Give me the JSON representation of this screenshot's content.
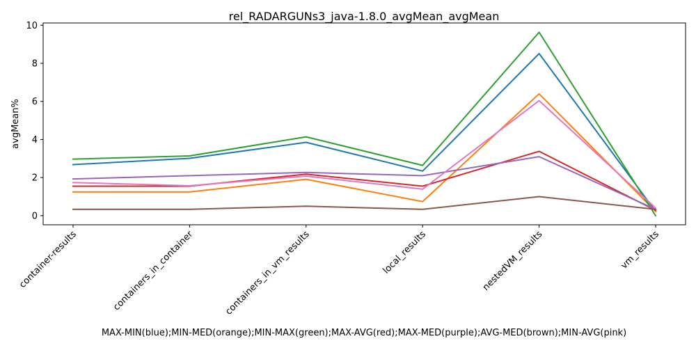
{
  "chart_data": {
    "type": "line",
    "title": "rel_RADARGUNs3_java-1.8.0_avgMean_avgMean",
    "xlabel": "MAX-MIN(blue);MIN-MED(orange);MIN-MAX(green);MAX-AVG(red);MAX-MED(purple);AVG-MED(brown);MIN-AVG(pink)",
    "ylabel": "avgMean%",
    "categories": [
      "container-results",
      "containers_in_container",
      "containers_in_vm_results",
      "local_results",
      "nestedVM_results",
      "vm_results"
    ],
    "yticks": [
      0,
      2,
      4,
      6,
      8,
      10
    ],
    "ylim": [
      -0.48,
      10.12
    ],
    "grid": false,
    "legend": "none",
    "series": [
      {
        "color": "#1f77b4",
        "values": [
          2.68,
          3.01,
          3.85,
          2.34,
          8.51,
          0.22
        ]
      },
      {
        "color": "#ff7f0e",
        "values": [
          1.25,
          1.25,
          1.91,
          0.74,
          6.4,
          0.22
        ]
      },
      {
        "color": "#2ca02c",
        "values": [
          2.97,
          3.14,
          4.14,
          2.64,
          9.63,
          0.0
        ]
      },
      {
        "color": "#d62728",
        "values": [
          1.55,
          1.55,
          2.18,
          1.55,
          3.38,
          0.28
        ]
      },
      {
        "color": "#9467bd",
        "values": [
          1.93,
          2.1,
          2.27,
          2.1,
          3.1,
          0.33
        ]
      },
      {
        "color": "#8c564b",
        "values": [
          0.33,
          0.33,
          0.5,
          0.33,
          1.0,
          0.33
        ]
      },
      {
        "color": "#e377c2",
        "values": [
          1.74,
          1.57,
          2.08,
          1.39,
          6.04,
          0.4
        ]
      }
    ]
  }
}
